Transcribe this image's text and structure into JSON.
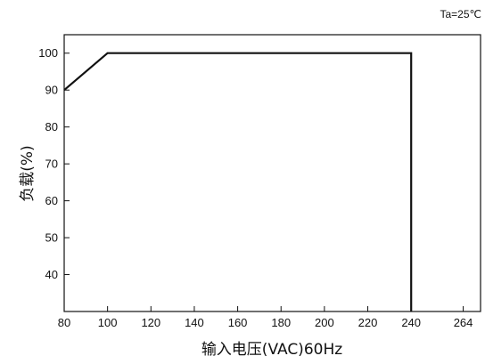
{
  "chart_data": {
    "type": "line",
    "annotation": "Ta=25℃",
    "xlabel": "输入电压(VAC)60Hz",
    "ylabel": "负载(%)",
    "x_ticks": [
      "80",
      "100",
      "120",
      "140",
      "160",
      "180",
      "200",
      "220",
      "240",
      "264"
    ],
    "y_ticks": [
      "40",
      "50",
      "60",
      "70",
      "80",
      "90",
      "100"
    ],
    "xlim": [
      80,
      272
    ],
    "ylim": [
      30,
      105
    ],
    "grid": false,
    "series": [
      {
        "x": [
          80,
          100,
          240,
          240
        ],
        "y": [
          90,
          100,
          100,
          30
        ],
        "color": "#111111"
      }
    ]
  }
}
